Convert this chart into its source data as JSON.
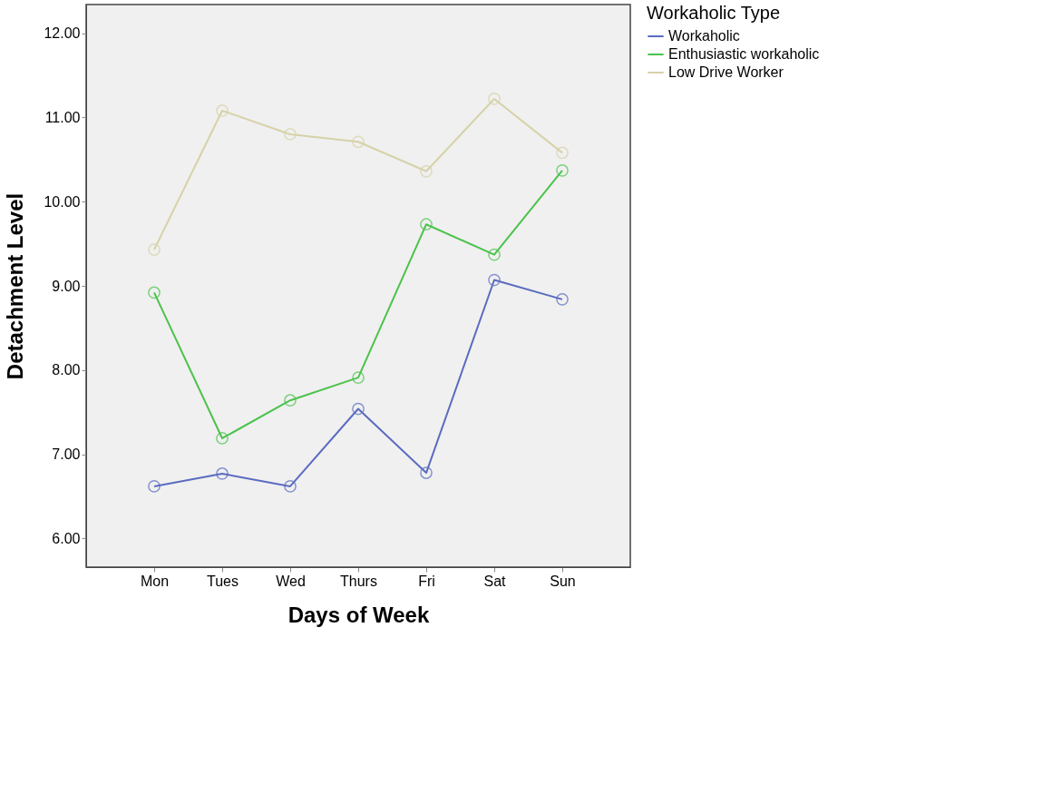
{
  "chart_data": {
    "type": "line",
    "xlabel": "Days of Week",
    "ylabel": "Detachment Level",
    "legend_title": "Workaholic Type",
    "categories": [
      "Mon",
      "Tues",
      "Wed",
      "Thurs",
      "Fri",
      "Sat",
      "Sun"
    ],
    "series": [
      {
        "name": "Workaholic",
        "color": "#5a6bc0",
        "values": [
          6.62,
          6.77,
          6.62,
          7.54,
          6.78,
          9.07,
          8.84
        ]
      },
      {
        "name": "Enthusiastic workaholic",
        "color": "#4cc24c",
        "values": [
          8.92,
          7.19,
          7.64,
          7.91,
          9.73,
          9.37,
          10.37
        ]
      },
      {
        "name": "Low Drive Worker",
        "color": "#d6d2a8",
        "values": [
          9.43,
          11.08,
          10.8,
          10.71,
          10.36,
          11.22,
          10.58
        ]
      }
    ],
    "ylim": [
      5.66,
      12.34
    ],
    "yticks": [
      {
        "value": 6,
        "label": "6.00"
      },
      {
        "value": 7,
        "label": "7.00"
      },
      {
        "value": 8,
        "label": "8.00"
      },
      {
        "value": 9,
        "label": "9.00"
      },
      {
        "value": 10,
        "label": "10.00"
      },
      {
        "value": 11,
        "label": "11.00"
      },
      {
        "value": 12,
        "label": "12.00"
      }
    ],
    "grid": false,
    "legend": "top right",
    "marker": "circle",
    "line_style": "solid"
  }
}
